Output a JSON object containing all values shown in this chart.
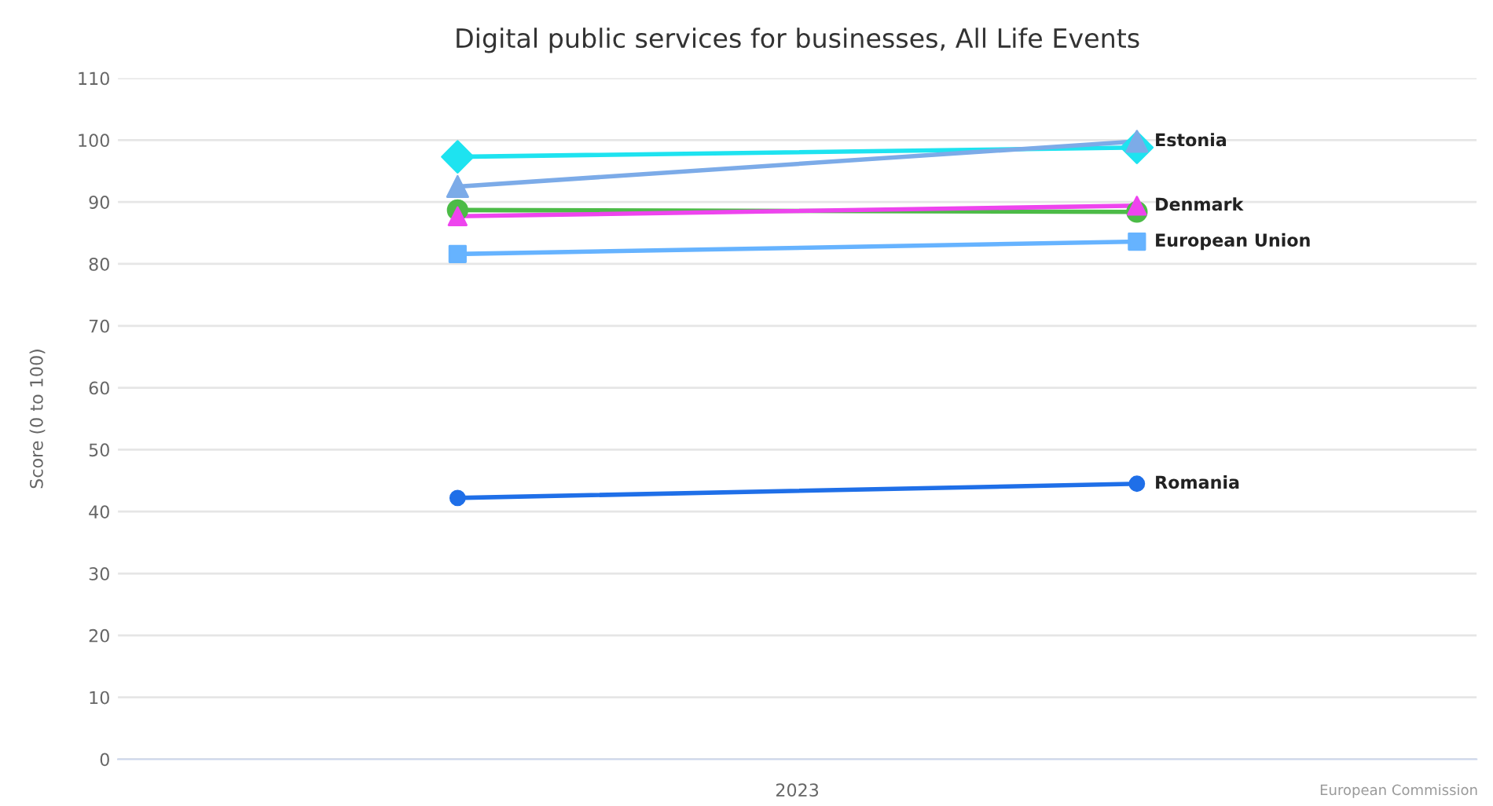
{
  "chart_data": {
    "type": "line",
    "title": "Digital public services for businesses, All Life Events",
    "ylabel": "Score (0 to 100)",
    "categories": [
      null,
      null
    ],
    "ylim": [
      0,
      110
    ],
    "yticks": [
      0,
      10,
      20,
      30,
      40,
      50,
      60,
      70,
      80,
      90,
      100,
      110
    ],
    "grid": "y",
    "series": [
      {
        "color": "#1ee3f0",
        "marker": "diamond",
        "values": [
          97.3,
          98.8
        ]
      },
      {
        "name": "Estonia",
        "color": "#7cabe8",
        "marker": "triangle",
        "values": [
          92.5,
          99.8
        ]
      },
      {
        "color": "#4cbb47",
        "marker": "circle",
        "values": [
          88.7,
          88.4
        ]
      },
      {
        "name": "Denmark",
        "color": "#ee44ee",
        "marker": "triangle",
        "values": [
          87.7,
          89.4
        ]
      },
      {
        "name": "European Union",
        "color": "#66b3ff",
        "marker": "square",
        "values": [
          81.6,
          83.6
        ]
      },
      {
        "name": "Romania",
        "color": "#1f6fe8",
        "marker": "circle",
        "values": [
          42.2,
          44.5
        ]
      }
    ],
    "annotations": [
      "2023",
      "European Commission"
    ]
  }
}
